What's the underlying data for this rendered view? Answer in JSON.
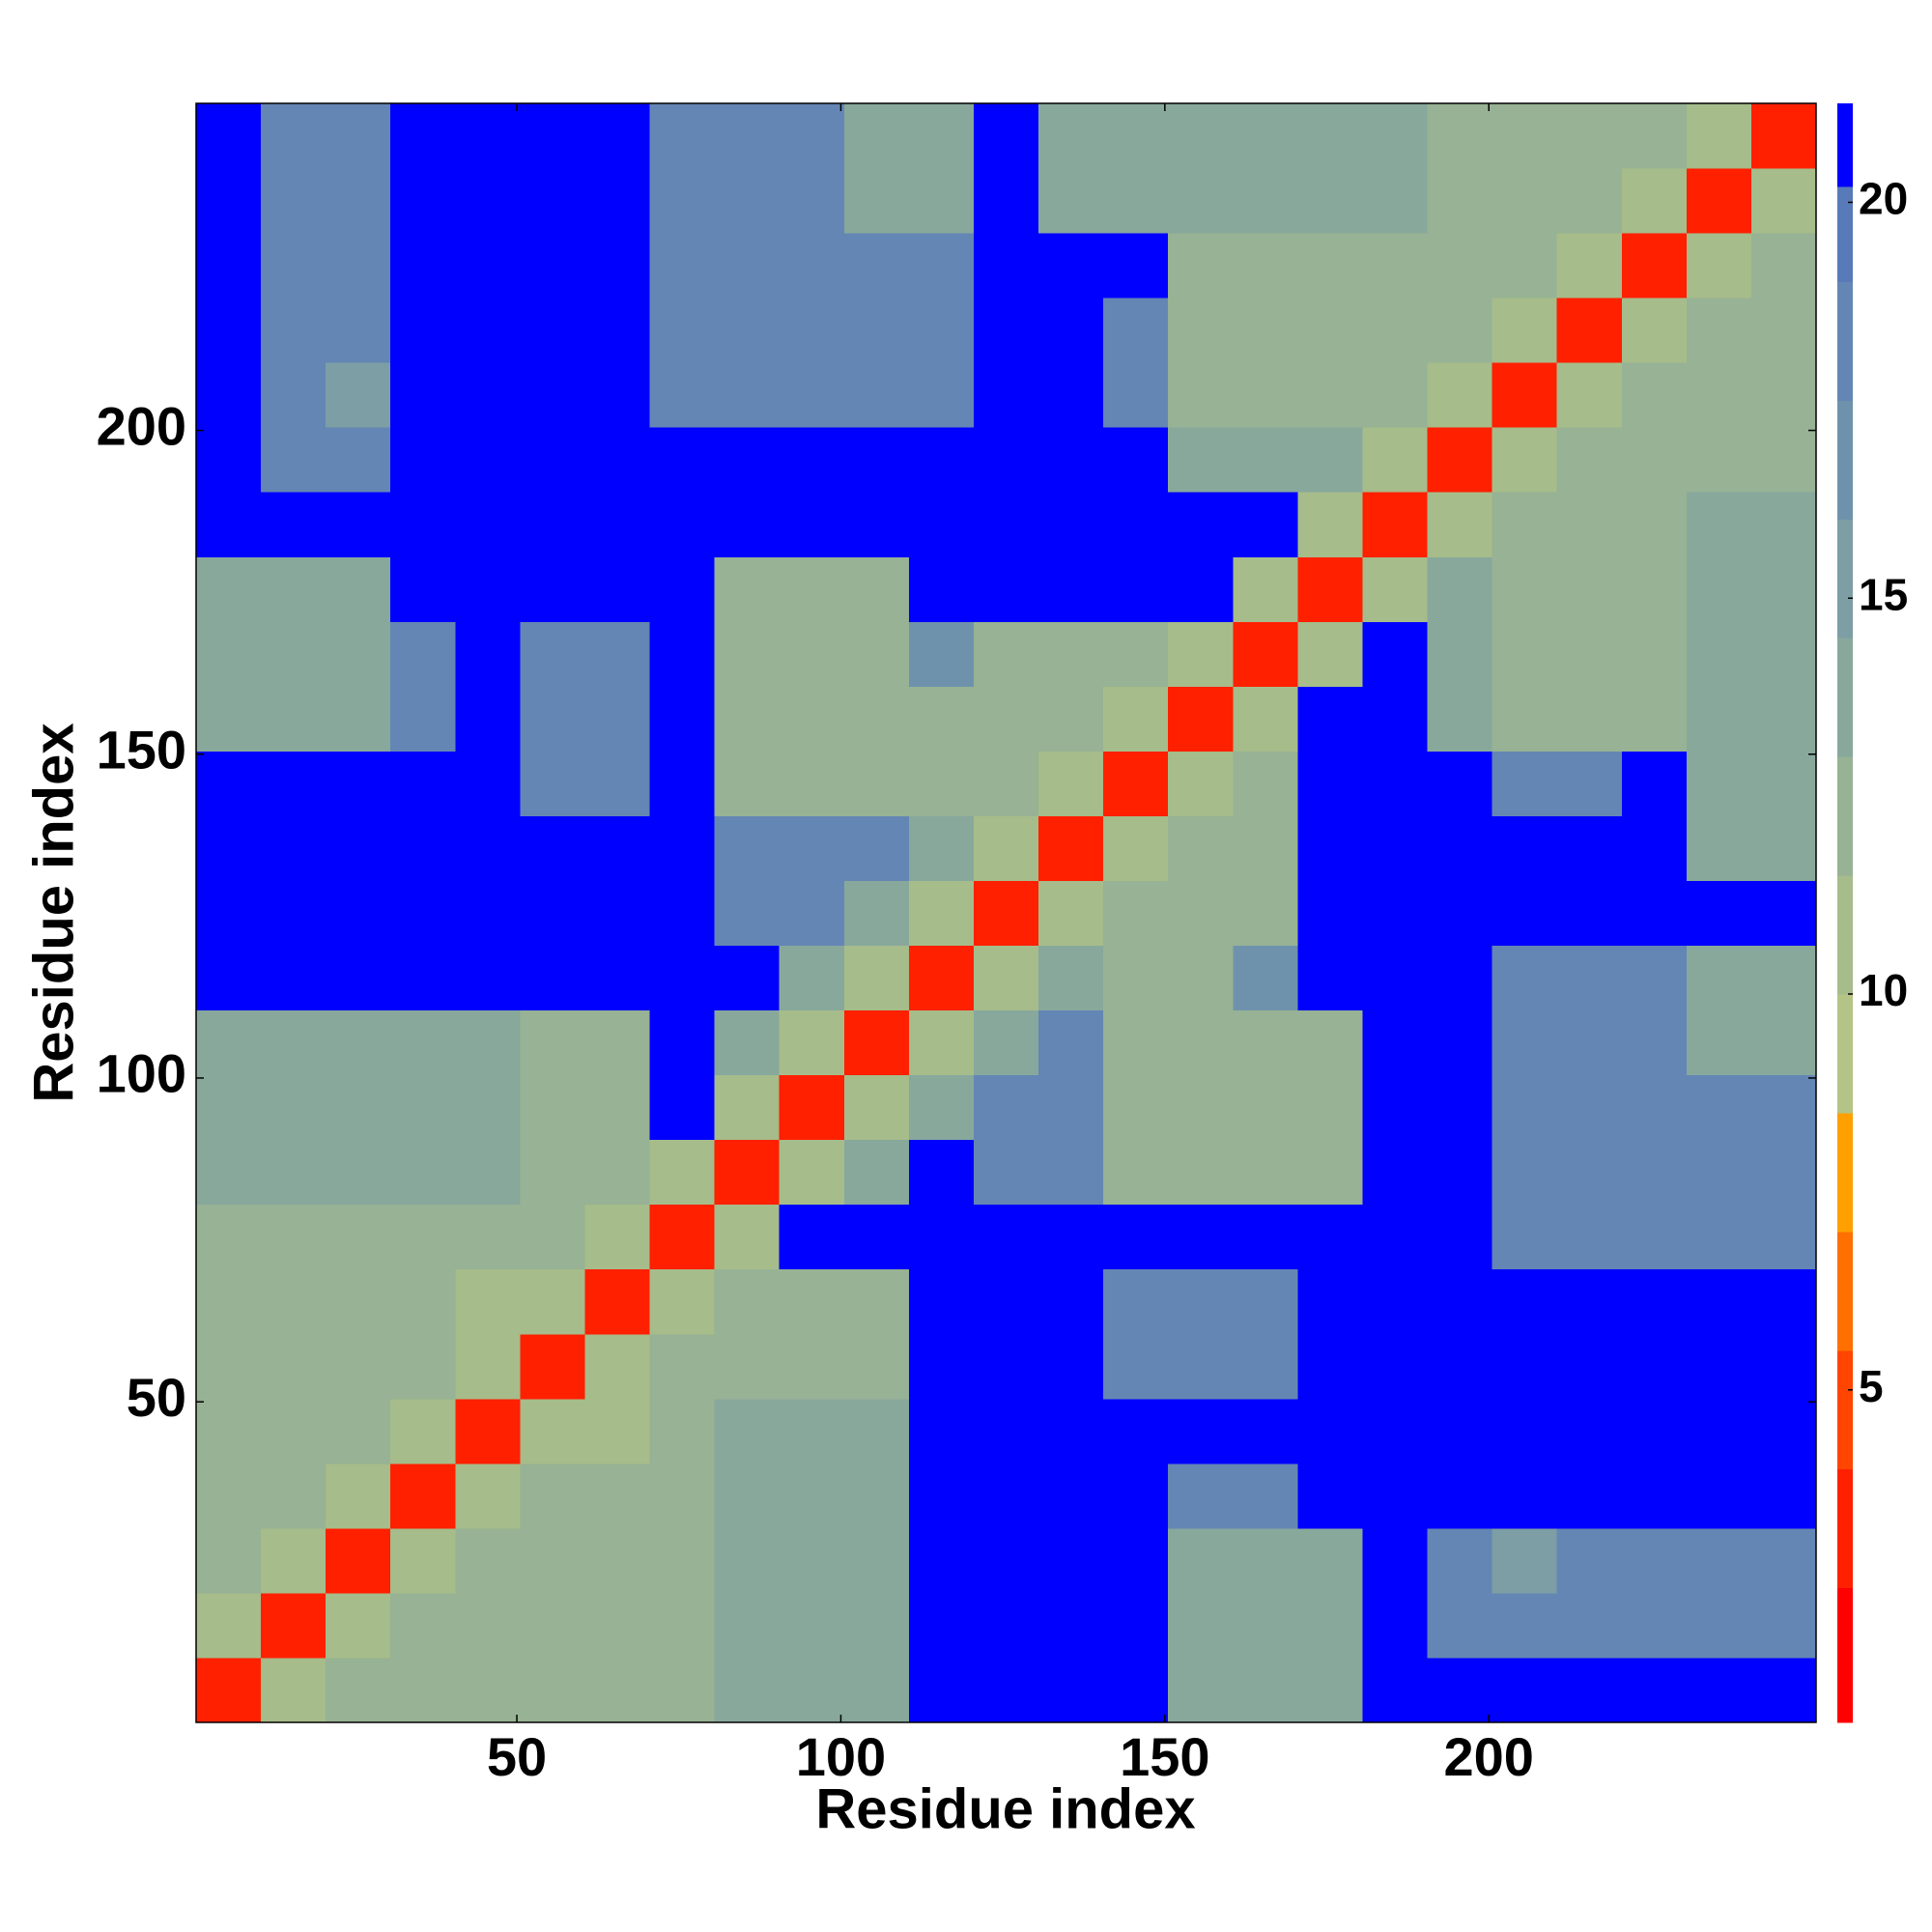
{
  "chart_data": {
    "type": "heatmap",
    "xlabel": "Residue index",
    "ylabel": "Residue index",
    "x": [
      5.5,
      15.5,
      25.5,
      35.5,
      45.5,
      55.5,
      65.5,
      75.5,
      85.5,
      95.5,
      105.5,
      115.5,
      125.5,
      135.5,
      145.5,
      155.5,
      165.5,
      175.5,
      185.5,
      195.5,
      205.5,
      215.5,
      225.5,
      235.5,
      245.5
    ],
    "y": [
      5.5,
      15.5,
      25.5,
      35.5,
      45.5,
      55.5,
      65.5,
      75.5,
      85.5,
      95.5,
      105.5,
      115.5,
      125.5,
      135.5,
      145.5,
      155.5,
      165.5,
      175.5,
      185.5,
      195.5,
      205.5,
      215.5,
      225.5,
      235.5,
      245.5
    ],
    "xlim": [
      0.5,
      250.5
    ],
    "ylim": [
      0.5,
      250.5
    ],
    "xticks": [
      50,
      100,
      150,
      200
    ],
    "yticks": [
      50,
      100,
      150,
      200
    ],
    "zlim": [
      0.8,
      21.25
    ],
    "zticks": [
      5,
      10,
      15,
      20
    ],
    "color_bounds": [
      0.8,
      2.5,
      4,
      5.5,
      7,
      8.5,
      10,
      11.5,
      13,
      14.5,
      16,
      17.5,
      19,
      20.2,
      21.25
    ],
    "colors": [
      "#ff0000",
      "#ff2000",
      "#ff4500",
      "#ff7000",
      "#ffa000",
      "#b4c486",
      "#a6bc8a",
      "#97b294",
      "#88a89c",
      "#7c9ea4",
      "#6f92ac",
      "#6486b4",
      "#587ab8",
      "#0000ff"
    ],
    "z": [
      [
        3,
        10,
        12,
        12,
        12,
        12,
        12,
        12,
        13,
        13,
        13,
        21,
        21,
        21,
        21,
        13,
        13,
        13,
        21,
        21,
        21,
        21,
        21,
        21,
        21
      ],
      [
        10,
        3,
        10,
        12,
        12,
        12,
        12,
        12,
        13,
        13,
        13,
        21,
        21,
        21,
        21,
        13,
        13,
        13,
        21,
        18,
        18,
        18,
        18,
        18,
        18
      ],
      [
        12,
        10,
        3,
        10,
        12,
        12,
        12,
        12,
        13,
        13,
        13,
        21,
        21,
        21,
        21,
        13,
        13,
        13,
        21,
        18,
        15,
        18,
        18,
        18,
        18
      ],
      [
        12,
        12,
        10,
        3,
        10,
        12,
        12,
        12,
        13,
        13,
        13,
        21,
        21,
        21,
        21,
        18,
        18,
        21,
        21,
        21,
        21,
        21,
        21,
        21,
        21
      ],
      [
        12,
        12,
        12,
        10,
        3,
        10,
        10,
        12,
        13,
        13,
        13,
        21,
        21,
        21,
        21,
        21,
        21,
        21,
        21,
        21,
        21,
        21,
        21,
        21,
        21
      ],
      [
        12,
        12,
        12,
        12,
        10,
        3,
        10,
        12,
        12,
        12,
        12,
        21,
        21,
        21,
        18,
        18,
        18,
        21,
        21,
        21,
        21,
        21,
        21,
        21,
        21
      ],
      [
        12,
        12,
        12,
        12,
        10,
        10,
        3,
        10,
        12,
        12,
        12,
        21,
        21,
        21,
        18,
        18,
        18,
        21,
        21,
        21,
        21,
        21,
        21,
        21,
        21
      ],
      [
        12,
        12,
        12,
        12,
        12,
        12,
        10,
        3,
        10,
        21,
        21,
        21,
        21,
        21,
        21,
        21,
        21,
        21,
        21,
        21,
        18,
        18,
        18,
        18,
        18
      ],
      [
        13,
        13,
        13,
        13,
        13,
        12,
        12,
        10,
        3,
        10,
        13,
        21,
        18,
        18,
        12,
        12,
        12,
        12,
        21,
        21,
        18,
        18,
        18,
        18,
        18
      ],
      [
        13,
        13,
        13,
        13,
        13,
        12,
        12,
        21,
        10,
        3,
        10,
        13,
        18,
        18,
        12,
        12,
        12,
        12,
        21,
        21,
        18,
        18,
        18,
        18,
        18
      ],
      [
        13,
        13,
        13,
        13,
        13,
        12,
        12,
        21,
        13,
        10,
        3,
        10,
        13,
        18,
        12,
        12,
        12,
        12,
        21,
        21,
        18,
        18,
        18,
        14,
        14
      ],
      [
        21,
        21,
        21,
        21,
        21,
        21,
        21,
        21,
        21,
        13,
        10,
        3,
        10,
        13,
        12,
        12,
        16,
        21,
        21,
        21,
        18,
        18,
        18,
        14,
        14
      ],
      [
        21,
        21,
        21,
        21,
        21,
        21,
        21,
        21,
        18,
        18,
        13,
        10,
        3,
        10,
        12,
        12,
        12,
        21,
        21,
        21,
        21,
        21,
        21,
        21,
        21
      ],
      [
        21,
        21,
        21,
        21,
        21,
        21,
        21,
        21,
        18,
        18,
        18,
        13,
        10,
        3,
        10,
        12,
        12,
        21,
        21,
        21,
        21,
        21,
        21,
        13,
        13
      ],
      [
        21,
        21,
        21,
        21,
        21,
        18,
        18,
        21,
        12,
        12,
        12,
        12,
        12,
        10,
        3,
        10,
        12,
        21,
        21,
        21,
        18,
        18,
        21,
        13,
        13
      ],
      [
        13,
        13,
        13,
        18,
        21,
        18,
        18,
        21,
        12,
        12,
        12,
        12,
        12,
        12,
        10,
        3,
        10,
        21,
        21,
        13,
        12,
        12,
        12,
        13,
        13
      ],
      [
        13,
        13,
        13,
        18,
        21,
        18,
        18,
        21,
        12,
        12,
        12,
        16,
        12,
        12,
        12,
        10,
        3,
        10,
        21,
        13,
        12,
        12,
        12,
        13,
        13
      ],
      [
        13,
        13,
        13,
        21,
        21,
        21,
        21,
        21,
        12,
        12,
        12,
        21,
        21,
        21,
        21,
        21,
        10,
        3,
        10,
        13,
        12,
        12,
        12,
        13,
        13
      ],
      [
        21,
        21,
        21,
        21,
        21,
        21,
        21,
        21,
        21,
        21,
        21,
        21,
        21,
        21,
        21,
        21,
        21,
        10,
        3,
        10,
        12,
        12,
        12,
        13,
        13
      ],
      [
        21,
        18,
        18,
        21,
        21,
        21,
        21,
        21,
        21,
        21,
        21,
        21,
        21,
        21,
        21,
        13,
        13,
        13,
        10,
        3,
        10,
        12,
        12,
        12,
        12
      ],
      [
        21,
        18,
        15,
        21,
        21,
        21,
        21,
        18,
        18,
        18,
        18,
        18,
        21,
        21,
        18,
        12,
        12,
        12,
        12,
        10,
        3,
        10,
        12,
        12,
        12
      ],
      [
        21,
        18,
        18,
        21,
        21,
        21,
        21,
        18,
        18,
        18,
        18,
        18,
        21,
        21,
        18,
        12,
        12,
        12,
        12,
        12,
        10,
        3,
        10,
        12,
        12
      ],
      [
        21,
        18,
        18,
        21,
        21,
        21,
        21,
        18,
        18,
        18,
        18,
        18,
        21,
        21,
        21,
        12,
        12,
        12,
        12,
        12,
        12,
        10,
        3,
        10,
        12
      ],
      [
        21,
        18,
        18,
        21,
        21,
        21,
        21,
        18,
        18,
        18,
        14,
        14,
        21,
        13,
        13,
        13,
        13,
        13,
        13,
        12,
        12,
        12,
        10,
        3,
        10
      ],
      [
        21,
        18,
        18,
        21,
        21,
        21,
        21,
        18,
        18,
        18,
        14,
        14,
        21,
        13,
        13,
        13,
        13,
        13,
        13,
        12,
        12,
        12,
        12,
        10,
        3
      ]
    ]
  }
}
